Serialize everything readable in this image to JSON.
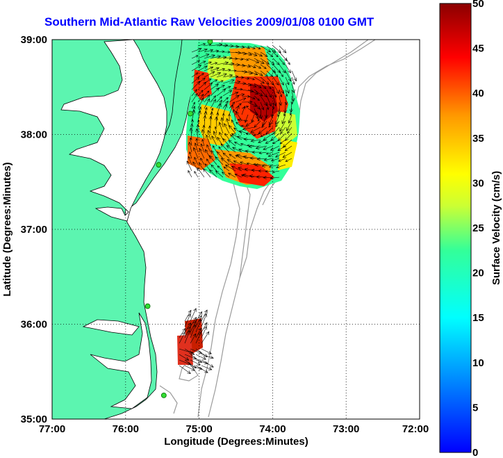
{
  "title": "Southern Mid-Atlantic Raw Velocities 2009/01/08 0100 GMT",
  "map": {
    "x_label": "Longitude (Degrees:Minutes)",
    "y_label": "Latitude (Degrees:Minutes)",
    "lon_ticks": [
      "77:00",
      "76:00",
      "75:00",
      "74:00",
      "73:00",
      "72:00"
    ],
    "lat_ticks": [
      "39:00",
      "38:00",
      "37:00",
      "36:00",
      "35:00"
    ],
    "lon_range": [
      -77,
      -72
    ],
    "lat_range": [
      35,
      39
    ],
    "land_color": "#5cf5b0",
    "grid": "dotted"
  },
  "colorbar": {
    "label": "Surface Velocity (cm/s)",
    "ticks": [
      "50",
      "45",
      "40",
      "35",
      "30",
      "25",
      "20",
      "15",
      "10",
      "5",
      "0"
    ],
    "range": [
      0,
      50
    ],
    "colormap": "jet"
  },
  "stations": [
    {
      "lon": -74.85,
      "lat": 38.98
    },
    {
      "lon": -75.12,
      "lat": 38.22
    },
    {
      "lon": -75.55,
      "lat": 37.68
    },
    {
      "lon": -75.7,
      "lat": 36.19
    },
    {
      "lon": -75.48,
      "lat": 35.25
    }
  ]
}
